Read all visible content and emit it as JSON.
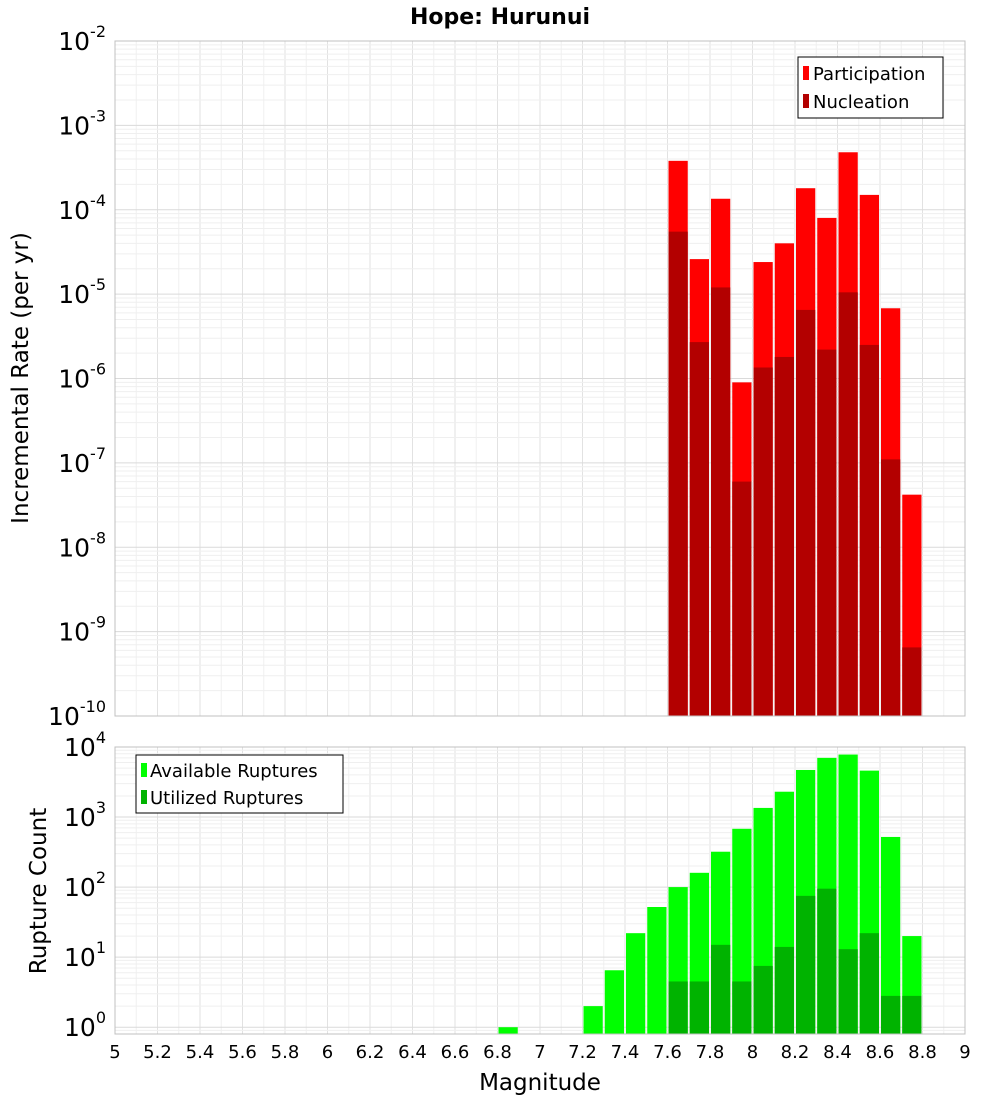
{
  "chart_data": [
    {
      "type": "bar",
      "title": "Hope: Hurunui",
      "ylabel": "Incremental Rate (per yr)",
      "xlabel": "",
      "y_scale": "log",
      "xlim": [
        5,
        9
      ],
      "ylim": [
        1e-10,
        0.01
      ],
      "y_ticks": [
        {
          "base": "10",
          "exp": "-10"
        },
        {
          "base": "10",
          "exp": "-9"
        },
        {
          "base": "10",
          "exp": "-8"
        },
        {
          "base": "10",
          "exp": "-7"
        },
        {
          "base": "10",
          "exp": "-6"
        },
        {
          "base": "10",
          "exp": "-5"
        },
        {
          "base": "10",
          "exp": "-4"
        },
        {
          "base": "10",
          "exp": "-3"
        },
        {
          "base": "10",
          "exp": "-2"
        }
      ],
      "grid": true,
      "legend_position": "top-right",
      "x": [
        7.65,
        7.75,
        7.85,
        7.95,
        8.05,
        8.15,
        8.25,
        8.35,
        8.45,
        8.55,
        8.65,
        8.75
      ],
      "series": [
        {
          "name": "Participation",
          "color": "#ff0000",
          "values": [
            0.00038,
            2.6e-05,
            0.000135,
            9e-07,
            2.4e-05,
            4e-05,
            0.00018,
            8e-05,
            0.00048,
            0.00015,
            6.8e-06,
            4.2e-08
          ]
        },
        {
          "name": "Nucleation",
          "color": "#b30000",
          "values": [
            5.5e-05,
            2.7e-06,
            1.2e-05,
            6e-08,
            1.35e-06,
            1.8e-06,
            6.5e-06,
            2.2e-06,
            1.05e-05,
            2.5e-06,
            1.1e-07,
            6.5e-10
          ]
        }
      ]
    },
    {
      "type": "bar",
      "title": "",
      "ylabel": "Rupture Count",
      "xlabel": "Magnitude",
      "y_scale": "log",
      "xlim": [
        5,
        9
      ],
      "ylim": [
        0.8,
        10000
      ],
      "x_ticks": [
        "5",
        "5.2",
        "5.4",
        "5.6",
        "5.8",
        "6",
        "6.2",
        "6.4",
        "6.6",
        "6.8",
        "7",
        "7.2",
        "7.4",
        "7.6",
        "7.8",
        "8",
        "8.2",
        "8.4",
        "8.6",
        "8.8",
        "9"
      ],
      "y_ticks": [
        {
          "base": "10",
          "exp": "0"
        },
        {
          "base": "10",
          "exp": "1"
        },
        {
          "base": "10",
          "exp": "2"
        },
        {
          "base": "10",
          "exp": "3"
        },
        {
          "base": "10",
          "exp": "4"
        }
      ],
      "grid": true,
      "legend_position": "top-left",
      "x": [
        6.85,
        7.25,
        7.35,
        7.45,
        7.55,
        7.65,
        7.75,
        7.85,
        7.95,
        8.05,
        8.15,
        8.25,
        8.35,
        8.45,
        8.55,
        8.65,
        8.75
      ],
      "series": [
        {
          "name": "Available Ruptures",
          "color": "#00ff00",
          "values": [
            1,
            2,
            6.5,
            22,
            52,
            100,
            160,
            320,
            680,
            1350,
            2300,
            4700,
            7000,
            7800,
            4600,
            520,
            20
          ]
        },
        {
          "name": "Utilized Ruptures",
          "color": "#00b300",
          "values": [
            0,
            0,
            0,
            0,
            0,
            4.5,
            4.5,
            15,
            4.5,
            7.5,
            14,
            75,
            95,
            13,
            22,
            2.8,
            2.8
          ]
        }
      ]
    }
  ]
}
